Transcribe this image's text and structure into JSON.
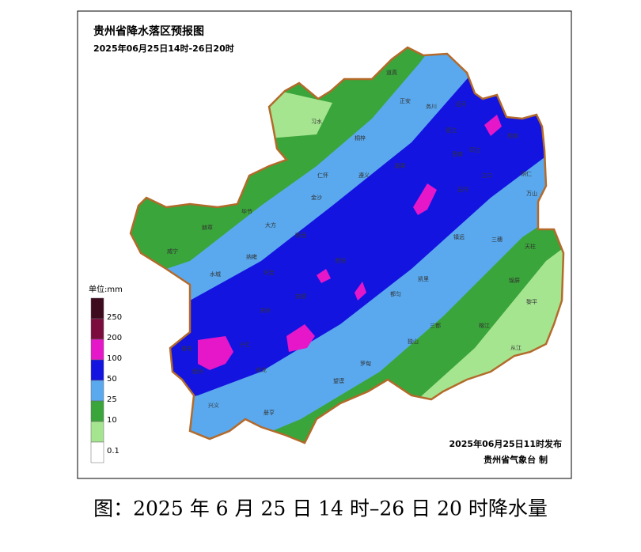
{
  "header": {
    "title": "贵州省降水落区预报图",
    "subtitle": "2025年06月25日14时-26日20时"
  },
  "legend": {
    "unit": "单位:mm",
    "items": [
      {
        "value": 250,
        "color": "#7a0d3d"
      },
      {
        "value": 200,
        "color": "#e617c8"
      },
      {
        "value": 100,
        "color": "#1414e0"
      },
      {
        "value": 50,
        "color": "#5aa9ee"
      },
      {
        "value": 25,
        "color": "#3aa53a"
      },
      {
        "value": 10,
        "color": "#a6e590"
      },
      {
        "value": 0.1,
        "color": "#ffffff"
      }
    ],
    "top_color": "#3d0a1e"
  },
  "footer": {
    "issued": "2025年06月25日11时发布",
    "author": "贵州省气象台 制"
  },
  "caption": "图：2025 年 6 月 25 日 14 时–26 日 20 时降水量",
  "places": [
    "习水",
    "道真",
    "正安",
    "桐梓",
    "务川",
    "沿河",
    "德江",
    "思南",
    "印江",
    "松桃",
    "江口",
    "铜仁",
    "万山",
    "遵义",
    "湄潭",
    "石阡",
    "仁怀",
    "金沙",
    "黔西",
    "大方",
    "毕节",
    "赫章",
    "威宁",
    "纳雍",
    "织金",
    "水城",
    "贵阳",
    "凯里",
    "镇远",
    "三穗",
    "天柱",
    "锦屏",
    "黎平",
    "榕江",
    "从江",
    "三都",
    "独山",
    "都匀",
    "罗甸",
    "望谟",
    "册亨",
    "安龙",
    "兴义",
    "兴仁",
    "普安",
    "盘州",
    "关岭",
    "安顺"
  ]
}
